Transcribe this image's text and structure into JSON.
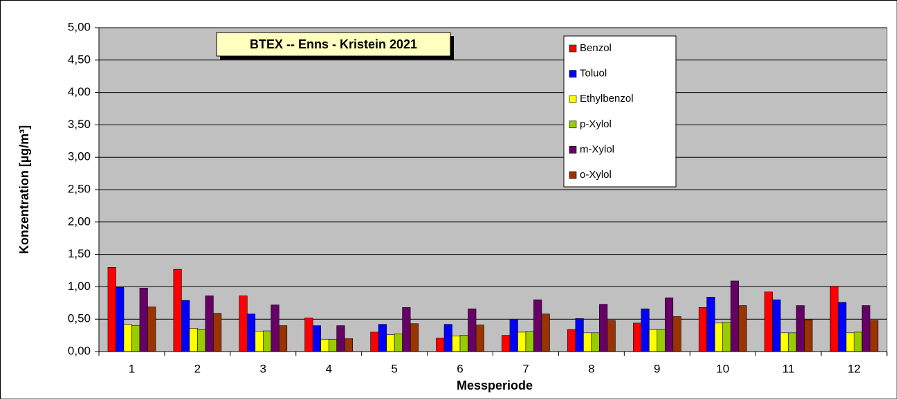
{
  "chart_data": {
    "type": "bar",
    "title": "BTEX -- Enns - Kristein 2021",
    "x_label": "Messperiode",
    "y_label": "Konzentration [µg/m³]",
    "categories": [
      "1",
      "2",
      "3",
      "4",
      "5",
      "6",
      "7",
      "8",
      "9",
      "10",
      "11",
      "12"
    ],
    "series": [
      {
        "name": "Benzol",
        "color": "#ff0000",
        "values": [
          1.3,
          1.27,
          0.86,
          0.52,
          0.3,
          0.21,
          0.25,
          0.34,
          0.44,
          0.68,
          0.92,
          1.01
        ]
      },
      {
        "name": "Toluol",
        "color": "#0000ff",
        "values": [
          0.99,
          0.79,
          0.58,
          0.4,
          0.42,
          0.42,
          0.49,
          0.51,
          0.66,
          0.84,
          0.8,
          0.76
        ]
      },
      {
        "name": "Ethylbenzol",
        "color": "#ffff00",
        "values": [
          0.42,
          0.36,
          0.31,
          0.19,
          0.26,
          0.24,
          0.3,
          0.29,
          0.34,
          0.44,
          0.29,
          0.29
        ]
      },
      {
        "name": "p-Xylol",
        "color": "#99cc00",
        "values": [
          0.4,
          0.34,
          0.32,
          0.19,
          0.27,
          0.25,
          0.31,
          0.29,
          0.34,
          0.45,
          0.29,
          0.3
        ]
      },
      {
        "name": "m-Xylol",
        "color": "#660066",
        "values": [
          0.98,
          0.86,
          0.72,
          0.4,
          0.68,
          0.66,
          0.8,
          0.73,
          0.83,
          1.09,
          0.71,
          0.71
        ]
      },
      {
        "name": "o-Xylol",
        "color": "#993300",
        "values": [
          0.69,
          0.59,
          0.4,
          0.2,
          0.43,
          0.41,
          0.58,
          0.48,
          0.54,
          0.71,
          0.49,
          0.48
        ]
      }
    ],
    "ylim": [
      0,
      5
    ],
    "yticks": [
      {
        "value": 0,
        "label": "0,00"
      },
      {
        "value": 0.5,
        "label": "0,50"
      },
      {
        "value": 1,
        "label": "1,00"
      },
      {
        "value": 1.5,
        "label": "1,50"
      },
      {
        "value": 2,
        "label": "2,00"
      },
      {
        "value": 2.5,
        "label": "2,50"
      },
      {
        "value": 3,
        "label": "3,00"
      },
      {
        "value": 3.5,
        "label": "3,50"
      },
      {
        "value": 4,
        "label": "4,00"
      },
      {
        "value": 4.5,
        "label": "4,50"
      },
      {
        "value": 5,
        "label": "5,00"
      }
    ],
    "grid": true
  }
}
